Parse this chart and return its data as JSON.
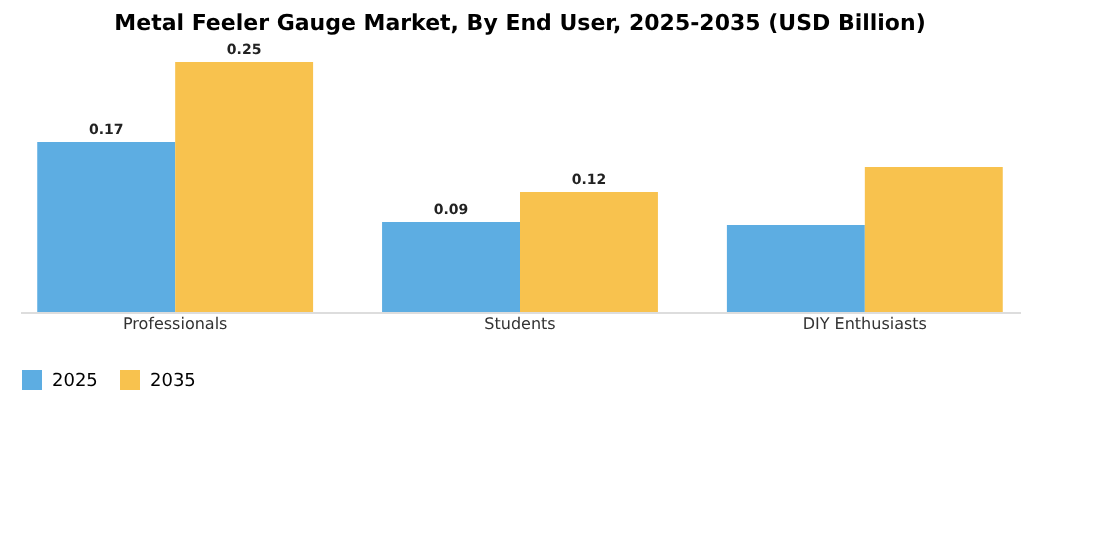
{
  "chart_data": {
    "type": "bar",
    "title": "Metal Feeler Gauge Market, By End User, 2025-2035 (USD Billion)",
    "categories": [
      "Professionals",
      "Students",
      "DIY Enthusiasts"
    ],
    "series": [
      {
        "name": "2025",
        "color": "#5dade2",
        "values": [
          0.17,
          0.09,
          0.087
        ],
        "value_labels": [
          "0.17",
          "0.09",
          null
        ]
      },
      {
        "name": "2035",
        "color": "#f8c24e",
        "values": [
          0.25,
          0.12,
          0.145
        ],
        "value_labels": [
          "0.25",
          "0.12",
          null
        ]
      }
    ],
    "legend": "bottom",
    "grid": false
  }
}
